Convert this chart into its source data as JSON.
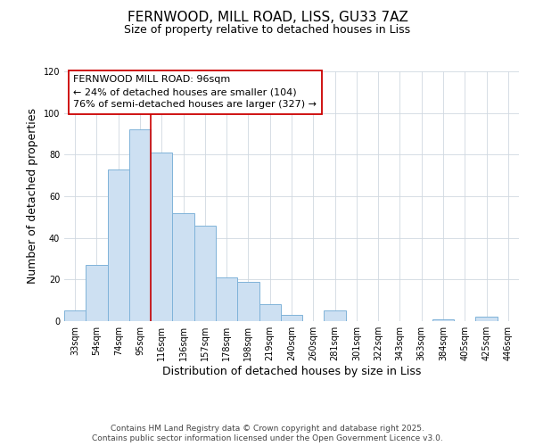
{
  "title_line1": "FERNWOOD, MILL ROAD, LISS, GU33 7AZ",
  "title_line2": "Size of property relative to detached houses in Liss",
  "xlabel": "Distribution of detached houses by size in Liss",
  "ylabel": "Number of detached properties",
  "bar_labels": [
    "33sqm",
    "54sqm",
    "74sqm",
    "95sqm",
    "116sqm",
    "136sqm",
    "157sqm",
    "178sqm",
    "198sqm",
    "219sqm",
    "240sqm",
    "260sqm",
    "281sqm",
    "301sqm",
    "322sqm",
    "343sqm",
    "363sqm",
    "384sqm",
    "405sqm",
    "425sqm",
    "446sqm"
  ],
  "bar_values": [
    5,
    27,
    73,
    92,
    81,
    52,
    46,
    21,
    19,
    8,
    3,
    0,
    5,
    0,
    0,
    0,
    0,
    1,
    0,
    2,
    0
  ],
  "bar_color": "#cde0f2",
  "bar_edge_color": "#7fb3d9",
  "ylim": [
    0,
    120
  ],
  "yticks": [
    0,
    20,
    40,
    60,
    80,
    100,
    120
  ],
  "annotation_title": "FERNWOOD MILL ROAD: 96sqm",
  "annotation_line2": "← 24% of detached houses are smaller (104)",
  "annotation_line3": "76% of semi-detached houses are larger (327) →",
  "vline_color": "#cc0000",
  "vline_x": 3.5,
  "footer_line1": "Contains HM Land Registry data © Crown copyright and database right 2025.",
  "footer_line2": "Contains public sector information licensed under the Open Government Licence v3.0.",
  "ann_font_size": 8,
  "title_font_size": 11,
  "subtitle_font_size": 9,
  "axis_label_font_size": 9,
  "tick_font_size": 7,
  "footer_font_size": 6.5
}
